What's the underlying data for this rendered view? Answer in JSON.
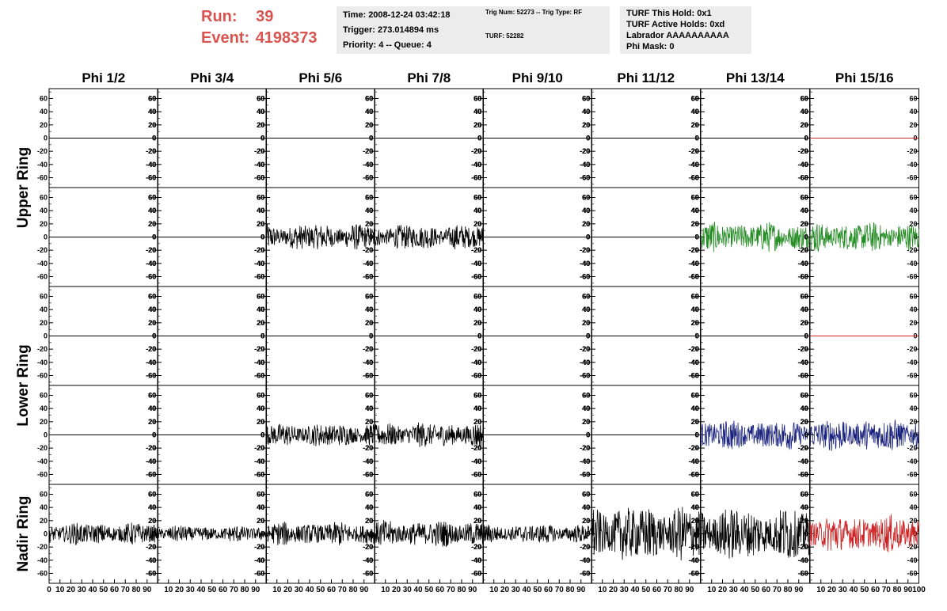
{
  "header": {
    "run_label": "Run:",
    "run_value": "39",
    "event_label": "Event:",
    "event_value": "4198373"
  },
  "info_time": {
    "time": "Time: 2008-12-24 03:42:18",
    "trigger": "Trigger: 273.014894 ms",
    "priority": "Priority: 4 -- Queue: 4"
  },
  "info_trig": {
    "trig": "Trig Num: 52273 -- Trig Type: RF",
    "turf": "TURF: 52282"
  },
  "info_turf": {
    "this_hold": "TURF This Hold: 0x1",
    "active_holds": "TURF Active Holds: 0xd",
    "labrador": "Labrador AAAAAAAAAA",
    "phi_mask": "Phi Mask: 0"
  },
  "chart_data": {
    "type": "line",
    "columns": [
      "Phi 1/2",
      "Phi 3/4",
      "Phi 5/6",
      "Phi 7/8",
      "Phi 9/10",
      "Phi 11/12",
      "Phi 13/14",
      "Phi 15/16"
    ],
    "rows": [
      "Upper Ring",
      "Upper Ring",
      "Lower Ring",
      "Lower Ring",
      "Nadir Ring"
    ],
    "row_labels": [
      "Upper Ring",
      "Lower Ring",
      "Nadir Ring"
    ],
    "ylim": [
      -75,
      75
    ],
    "yticks": [
      -60,
      -40,
      -20,
      0,
      20,
      40,
      60
    ],
    "xlim": [
      0,
      100
    ],
    "xticks": [
      0,
      10,
      20,
      30,
      40,
      50,
      60,
      70,
      80,
      90,
      100
    ],
    "colors": {
      "default": "#000000",
      "green": "#228B22",
      "blue": "#1a237e",
      "red": "#cc2222"
    },
    "panels": [
      [
        {
          "amp": 0,
          "color": "black"
        },
        {
          "amp": 0,
          "color": "black"
        },
        {
          "amp": 0,
          "color": "black"
        },
        {
          "amp": 0,
          "color": "black"
        },
        {
          "amp": 0,
          "color": "black"
        },
        {
          "amp": 0,
          "color": "black"
        },
        {
          "amp": 0,
          "color": "black"
        },
        {
          "amp": 0,
          "color": "red"
        }
      ],
      [
        {
          "amp": 0,
          "color": "black"
        },
        {
          "amp": 0,
          "color": "black"
        },
        {
          "amp": 18,
          "color": "black"
        },
        {
          "amp": 17,
          "color": "black"
        },
        {
          "amp": 0,
          "color": "black"
        },
        {
          "amp": 0,
          "color": "black"
        },
        {
          "amp": 20,
          "color": "green"
        },
        {
          "amp": 20,
          "color": "green"
        }
      ],
      [
        {
          "amp": 0,
          "color": "black"
        },
        {
          "amp": 0,
          "color": "black"
        },
        {
          "amp": 0,
          "color": "black"
        },
        {
          "amp": 0,
          "color": "black"
        },
        {
          "amp": 0,
          "color": "black"
        },
        {
          "amp": 0,
          "color": "black"
        },
        {
          "amp": 0,
          "color": "black"
        },
        {
          "amp": 0,
          "color": "red"
        }
      ],
      [
        {
          "amp": 0,
          "color": "black"
        },
        {
          "amp": 0,
          "color": "black"
        },
        {
          "amp": 16,
          "color": "black"
        },
        {
          "amp": 17,
          "color": "black"
        },
        {
          "amp": 0,
          "color": "black"
        },
        {
          "amp": 0,
          "color": "black"
        },
        {
          "amp": 20,
          "color": "blue"
        },
        {
          "amp": 22,
          "color": "blue"
        }
      ],
      [
        {
          "amp": 15,
          "color": "black"
        },
        {
          "amp": 11,
          "color": "black"
        },
        {
          "amp": 16,
          "color": "black"
        },
        {
          "amp": 18,
          "color": "black"
        },
        {
          "amp": 13,
          "color": "black"
        },
        {
          "amp": 38,
          "color": "black"
        },
        {
          "amp": 36,
          "color": "black"
        },
        {
          "amp": 25,
          "color": "red"
        }
      ]
    ]
  }
}
